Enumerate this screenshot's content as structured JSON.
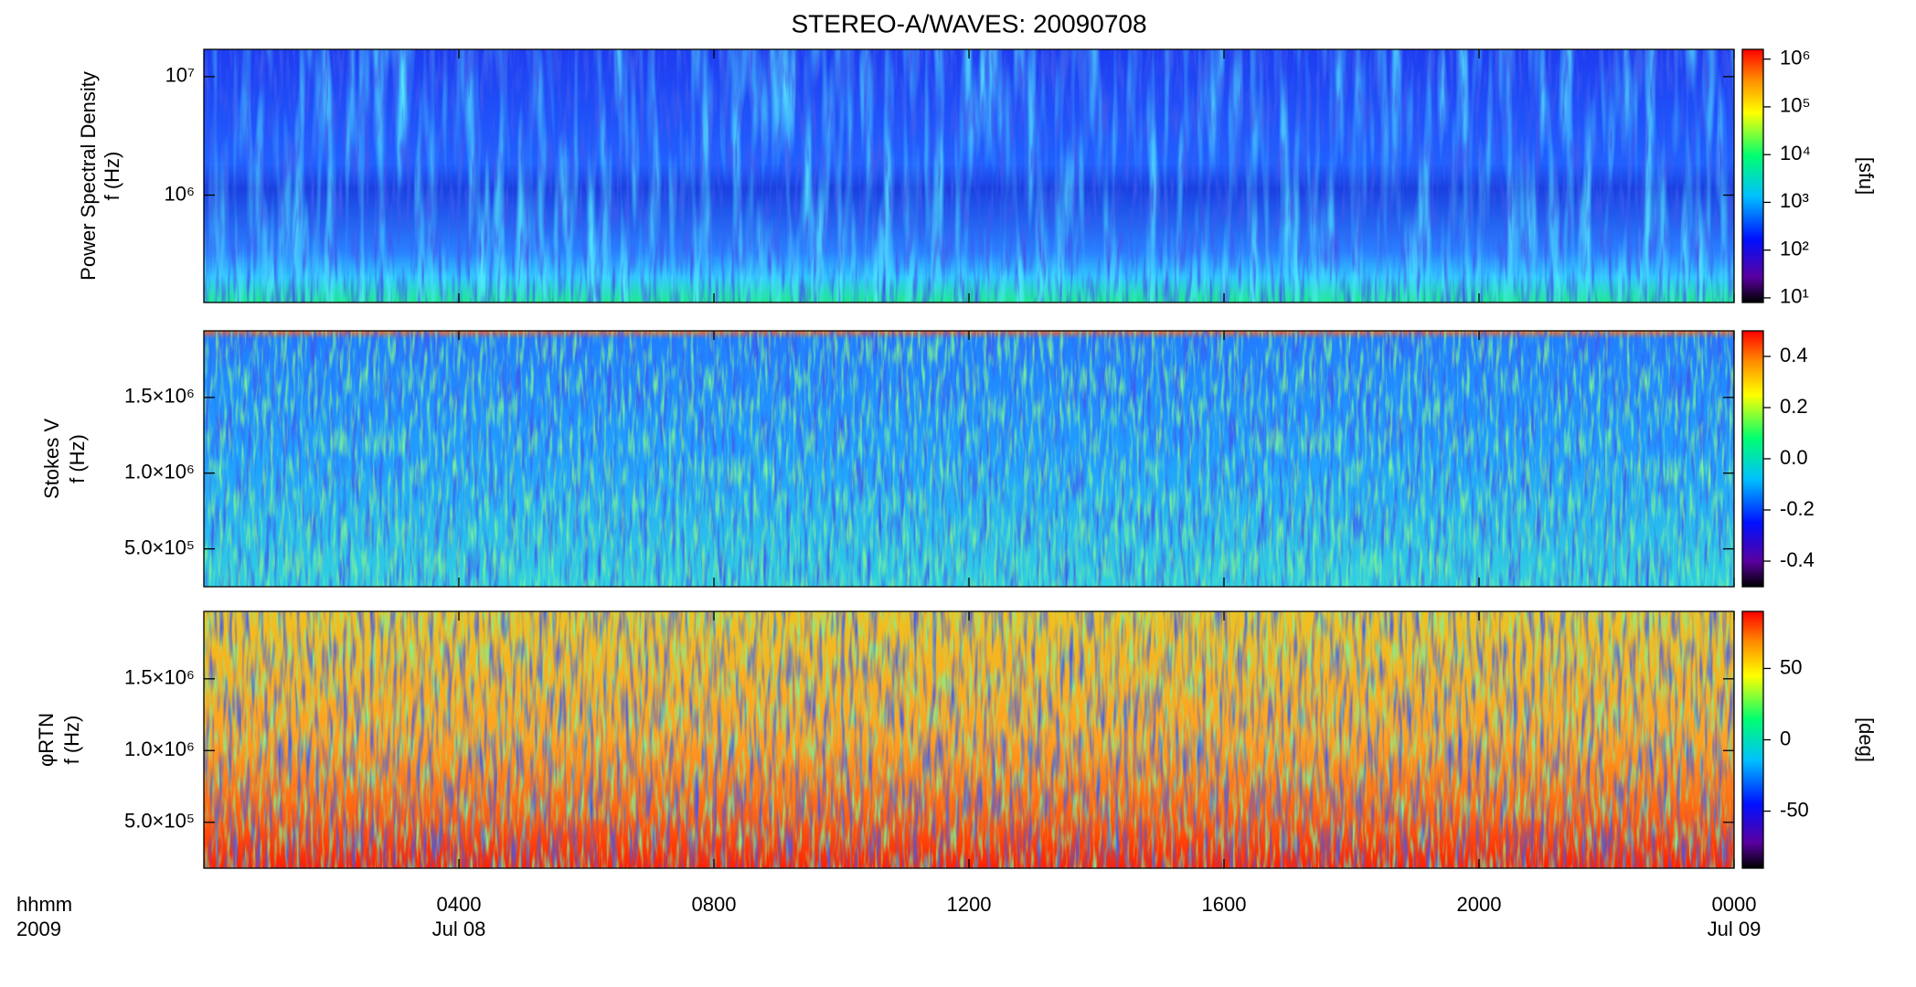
{
  "chart_data": [
    {
      "type": "spectrogram",
      "title": "STEREO-A/WAVES: 20090708",
      "ylabel": [
        "Power Spectral Density",
        "f (Hz)"
      ],
      "yscale": "log",
      "ylim": [
        124000,
        17000000
      ],
      "yticks": [
        {
          "value": 1000000,
          "label": "10⁶"
        },
        {
          "value": 10000000,
          "label": "10⁷"
        }
      ],
      "colorbar": {
        "scale": "log",
        "clim": [
          8,
          1600000
        ],
        "label": "[sfu]",
        "ticks": [
          {
            "value": 10,
            "label": "10¹"
          },
          {
            "value": 100,
            "label": "10²"
          },
          {
            "value": 1000,
            "label": "10³"
          },
          {
            "value": 10000,
            "label": "10⁴"
          },
          {
            "value": 100000,
            "label": "10⁵"
          },
          {
            "value": 1000000,
            "label": "10⁶"
          }
        ]
      }
    },
    {
      "type": "spectrogram",
      "ylabel": [
        "Stokes V",
        "f (Hz)"
      ],
      "yscale": "linear",
      "ylim": [
        250000,
        1940000
      ],
      "yticks": [
        {
          "value": 500000,
          "label": "5.0×10⁵"
        },
        {
          "value": 1000000,
          "label": "1.0×10⁶"
        },
        {
          "value": 1500000,
          "label": "1.5×10⁶"
        }
      ],
      "colorbar": {
        "scale": "linear",
        "clim": [
          -0.5,
          0.5
        ],
        "ticks": [
          -0.4,
          -0.2,
          {
            "value": 0,
            "label": "0.0"
          },
          0.2,
          0.4
        ]
      }
    },
    {
      "type": "spectrogram",
      "ylabel": [
        "φRTN",
        "f (Hz)"
      ],
      "yscale": "linear",
      "ylim": [
        180000,
        1970000
      ],
      "yticks": [
        {
          "value": 500000,
          "label": "5.0×10⁵"
        },
        {
          "value": 1000000,
          "label": "1.0×10⁶"
        },
        {
          "value": 1500000,
          "label": "1.5×10⁶"
        }
      ],
      "colorbar": {
        "scale": "linear",
        "clim": [
          -90,
          90
        ],
        "label": "[deg]",
        "ticks": [
          -50,
          0,
          50
        ]
      },
      "xlabel": [
        "hhmm",
        "2009"
      ],
      "xlim": [
        0,
        24
      ],
      "xticks": [
        {
          "value": 4,
          "label": "0400",
          "date": "Jul 08"
        },
        {
          "value": 8,
          "label": "0800"
        },
        {
          "value": 12,
          "label": "1200"
        },
        {
          "value": 16,
          "label": "1600"
        },
        {
          "value": 20,
          "label": "2000"
        },
        {
          "value": 24,
          "label": "0000",
          "date": "Jul 09"
        }
      ]
    }
  ]
}
